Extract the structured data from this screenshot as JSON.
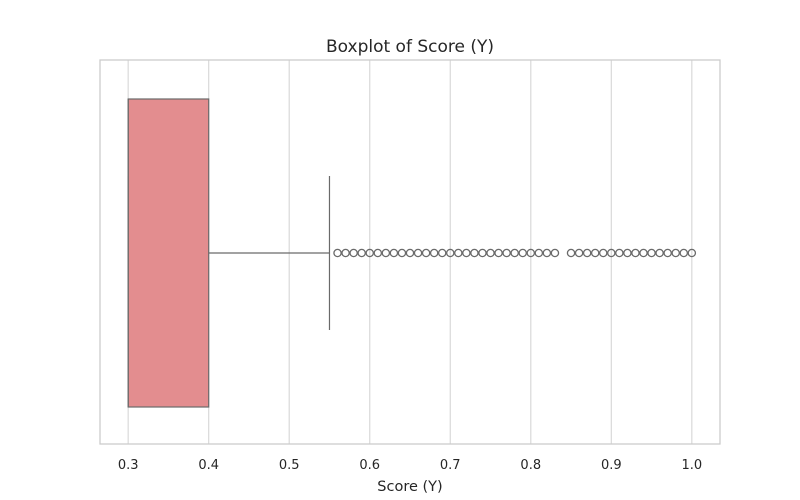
{
  "chart_data": {
    "type": "boxplot",
    "orientation": "horizontal",
    "title": "Boxplot of Score (Y)",
    "xlabel": "Score (Y)",
    "ylabel": "",
    "xlim": [
      0.265,
      1.035
    ],
    "xticks": [
      0.3,
      0.4,
      0.5,
      0.6,
      0.7,
      0.8,
      0.9,
      1.0
    ],
    "xtick_labels": [
      "0.3",
      "0.4",
      "0.5",
      "0.6",
      "0.7",
      "0.8",
      "0.9",
      "1.0"
    ],
    "grid": "x",
    "box": {
      "whisker_low": 0.3,
      "q1": 0.3,
      "median": 0.3,
      "q3": 0.4,
      "whisker_high": 0.55
    },
    "outliers": [
      0.56,
      0.57,
      0.58,
      0.59,
      0.6,
      0.61,
      0.62,
      0.63,
      0.64,
      0.65,
      0.66,
      0.67,
      0.68,
      0.69,
      0.7,
      0.71,
      0.72,
      0.73,
      0.74,
      0.75,
      0.76,
      0.77,
      0.78,
      0.79,
      0.8,
      0.81,
      0.82,
      0.83,
      0.85,
      0.86,
      0.87,
      0.88,
      0.89,
      0.9,
      0.91,
      0.92,
      0.93,
      0.94,
      0.95,
      0.96,
      0.97,
      0.98,
      0.99,
      1.0
    ],
    "colors": {
      "box_fill": "#e38d8f",
      "box_edge": "#6a6a6a",
      "grid": "#d9d9d9",
      "spine": "#cccccc",
      "outlier_edge": "#6a6a6a"
    }
  }
}
